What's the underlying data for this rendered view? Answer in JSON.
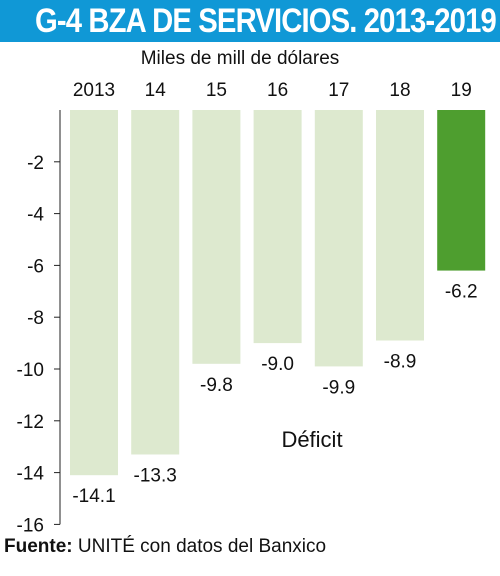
{
  "header": {
    "title": "G-4 BZA DE SERVICIOS. 2013-2019",
    "accent_color": "#1098d6"
  },
  "chart_data": {
    "type": "bar",
    "title": "G-4 BZA DE SERVICIOS. 2013-2019",
    "subtitle": "Miles de mill de dólares",
    "categories": [
      "2013",
      "14",
      "15",
      "16",
      "17",
      "18",
      "19"
    ],
    "values": [
      -14.1,
      -13.3,
      -9.8,
      -9.0,
      -9.9,
      -8.9,
      -6.2
    ],
    "data_labels": [
      "-14.1",
      "-13.3",
      "-9.8",
      "-9.0",
      "-9.9",
      "-8.9",
      "-6.2"
    ],
    "ylim": [
      -16,
      0
    ],
    "yticks": [
      -2,
      -4,
      -6,
      -8,
      -10,
      -12,
      -14,
      -16
    ],
    "x_axis_position": "top",
    "grid": false,
    "annotation": "Déficit",
    "bar_color": "#dde9cf",
    "highlight_color": "#4e9e2f",
    "highlight_index": 6
  },
  "source": {
    "label": "Fuente:",
    "text": "UNITÉ con datos del Banxico"
  }
}
